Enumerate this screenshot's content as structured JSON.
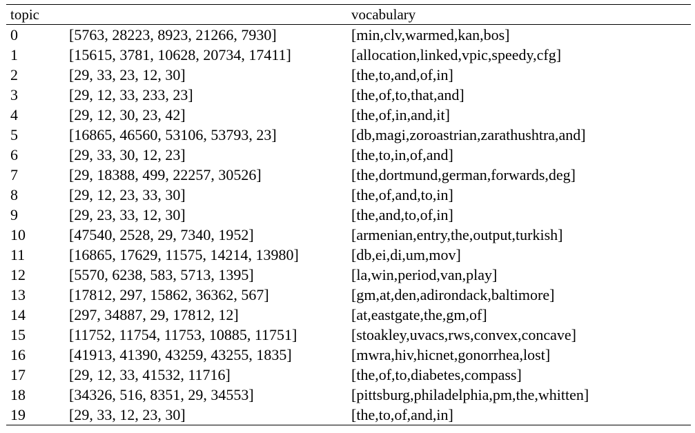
{
  "table": {
    "headers": {
      "topic": "topic",
      "ids": "",
      "vocabulary": "vocabulary"
    },
    "rows": [
      {
        "topic": "0",
        "ids": "[5763, 28223, 8923, 21266, 7930]",
        "vocabulary": "[min,clv,warmed,kan,bos]"
      },
      {
        "topic": "1",
        "ids": "[15615, 3781, 10628, 20734, 17411]",
        "vocabulary": "[allocation,linked,vpic,speedy,cfg]"
      },
      {
        "topic": "2",
        "ids": "[29, 33, 23, 12, 30]",
        "vocabulary": "[the,to,and,of,in]"
      },
      {
        "topic": "3",
        "ids": "[29, 12, 33, 233, 23]",
        "vocabulary": "[the,of,to,that,and]"
      },
      {
        "topic": "4",
        "ids": "[29, 12, 30, 23, 42]",
        "vocabulary": "[the,of,in,and,it]"
      },
      {
        "topic": "5",
        "ids": "[16865, 46560, 53106, 53793, 23]",
        "vocabulary": "[db,magi,zoroastrian,zarathushtra,and]"
      },
      {
        "topic": "6",
        "ids": "[29, 33, 30, 12, 23]",
        "vocabulary": "[the,to,in,of,and]"
      },
      {
        "topic": "7",
        "ids": "[29, 18388, 499, 22257, 30526]",
        "vocabulary": "[the,dortmund,german,forwards,deg]"
      },
      {
        "topic": "8",
        "ids": "[29, 12, 23, 33, 30]",
        "vocabulary": "[the,of,and,to,in]"
      },
      {
        "topic": "9",
        "ids": "[29, 23, 33, 12, 30]",
        "vocabulary": "[the,and,to,of,in]"
      },
      {
        "topic": "10",
        "ids": "[47540, 2528, 29, 7340, 1952]",
        "vocabulary": "[armenian,entry,the,output,turkish]"
      },
      {
        "topic": "11",
        "ids": "[16865, 17629, 11575, 14214, 13980]",
        "vocabulary": "[db,ei,di,um,mov]"
      },
      {
        "topic": "12",
        "ids": "[5570, 6238, 583, 5713, 1395]",
        "vocabulary": "[la,win,period,van,play]"
      },
      {
        "topic": "13",
        "ids": "[17812, 297, 15862, 36362, 567]",
        "vocabulary": "[gm,at,den,adirondack,baltimore]"
      },
      {
        "topic": "14",
        "ids": "[297, 34887, 29, 17812, 12]",
        "vocabulary": "[at,eastgate,the,gm,of]"
      },
      {
        "topic": "15",
        "ids": "[11752, 11754, 11753, 10885, 11751]",
        "vocabulary": "[stoakley,uvacs,rws,convex,concave]"
      },
      {
        "topic": "16",
        "ids": "[41913, 41390, 43259, 43255, 1835]",
        "vocabulary": "[mwra,hiv,hicnet,gonorrhea,lost]"
      },
      {
        "topic": "17",
        "ids": "[29, 12, 33, 41532, 11716]",
        "vocabulary": "[the,of,to,diabetes,compass]"
      },
      {
        "topic": "18",
        "ids": "[34326, 516, 8351, 29, 34553]",
        "vocabulary": "[pittsburg,philadelphia,pm,the,whitten]"
      },
      {
        "topic": "19",
        "ids": "[29, 33, 12, 23, 30]",
        "vocabulary": "[the,to,of,and,in]"
      }
    ]
  }
}
